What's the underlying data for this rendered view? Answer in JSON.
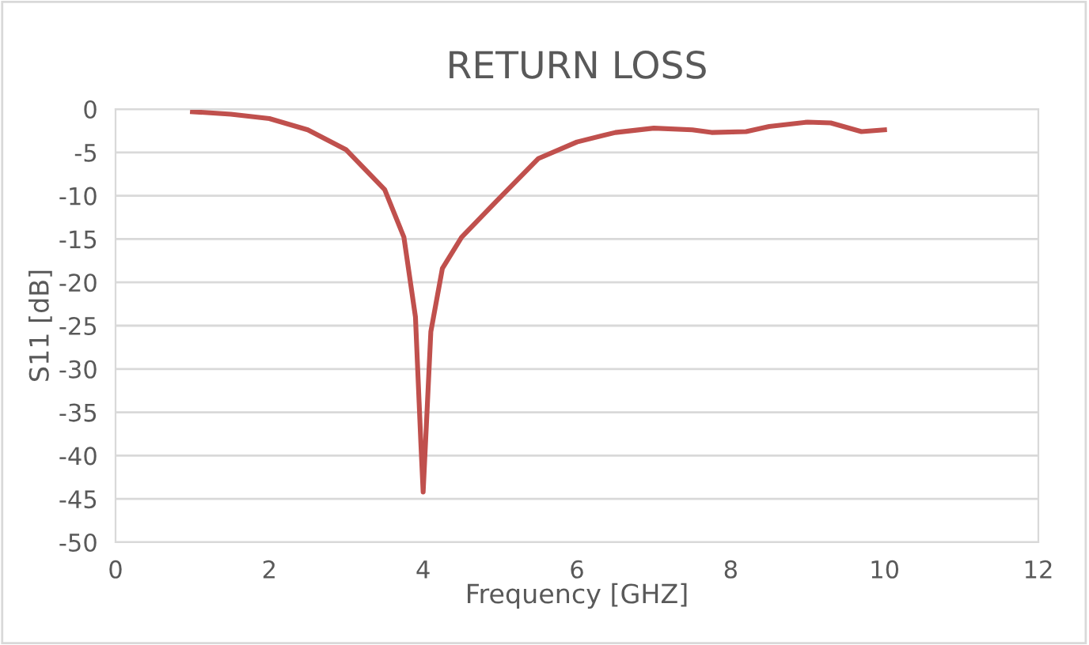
{
  "chart_data": {
    "type": "line",
    "title": "RETURN LOSS",
    "xlabel": "Frequency [GHZ]",
    "ylabel": "S11 [dB]",
    "x": [
      1,
      1.5,
      2,
      2.5,
      3,
      3.5,
      3.75,
      3.9,
      3.97,
      4.0,
      4.05,
      4.1,
      4.25,
      4.5,
      5,
      5.5,
      6,
      6.5,
      7,
      7.5,
      7.75,
      8.2,
      8.5,
      9,
      9.3,
      9.7,
      10
    ],
    "series": [
      {
        "color": "#c0504d",
        "values": [
          -0.3,
          -0.6,
          -1.1,
          -2.4,
          -4.7,
          -9.3,
          -14.8,
          -24,
          -38.5,
          -44.2,
          -35,
          -25.7,
          -18.4,
          -14.8,
          -10.2,
          -5.7,
          -3.8,
          -2.7,
          -2.2,
          -2.4,
          -2.7,
          -2.6,
          -2.0,
          -1.5,
          -1.6,
          -2.6,
          -2.4
        ]
      }
    ],
    "xlim": [
      0,
      12
    ],
    "xticks": [
      0,
      2,
      4,
      6,
      8,
      10,
      12
    ],
    "ylim": [
      -50,
      0
    ],
    "yticks": [
      -50,
      -45,
      -40,
      -35,
      -30,
      -25,
      -20,
      -15,
      -10,
      -5,
      0
    ],
    "grid": "y",
    "marker": "none",
    "line_style": "solid"
  }
}
